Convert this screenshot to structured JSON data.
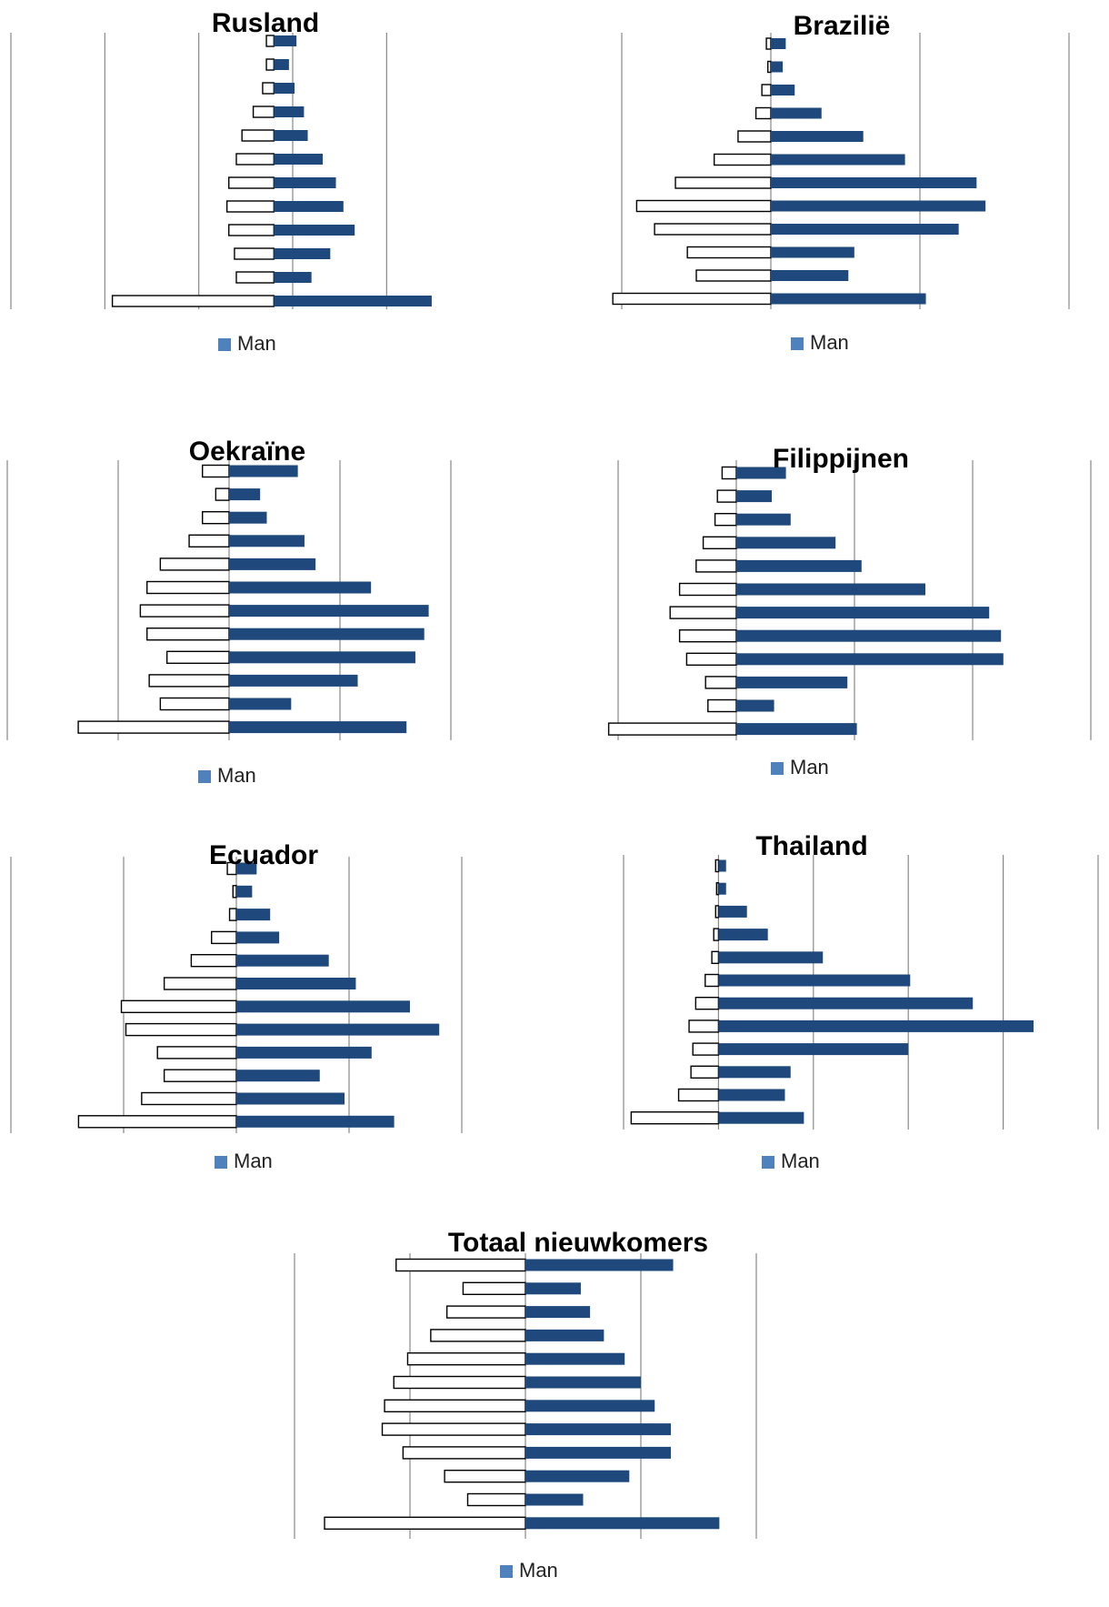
{
  "colors": {
    "man_fill": "#1F497D",
    "vrouw_fill": "#FFFFFF",
    "vrouw_stroke": "#000000",
    "legend_man": "#4F81BD",
    "gridline": "#888888"
  },
  "legend": {
    "man_label": "Man"
  },
  "chart_data": [
    {
      "type": "bar",
      "title": "Rusland",
      "orientation": "horizontal-pyramid",
      "xlim": [
        -7,
        5
      ],
      "grid": true,
      "legend_position": "bottom",
      "series": [
        {
          "values": [
            0.6,
            0.4,
            0.55,
            0.8,
            0.9,
            1.3,
            1.65,
            1.85,
            2.15,
            1.5,
            1.0,
            4.2
          ]
        },
        {
          "values": [
            -0.2,
            -0.2,
            -0.3,
            -0.55,
            -0.85,
            -1.0,
            -1.2,
            -1.25,
            -1.2,
            -1.05,
            -1.0,
            -4.3
          ]
        }
      ]
    },
    {
      "type": "bar",
      "title": "Brazilië",
      "orientation": "horizontal-pyramid",
      "xlim": [
        -5,
        10
      ],
      "grid": true,
      "legend_position": "bottom",
      "series": [
        {
          "values": [
            0.5,
            0.4,
            0.8,
            1.7,
            3.1,
            4.5,
            6.9,
            7.2,
            6.3,
            2.8,
            2.6,
            5.2
          ]
        },
        {
          "values": [
            -0.15,
            -0.1,
            -0.3,
            -0.5,
            -1.1,
            -1.9,
            -3.2,
            -4.5,
            -3.9,
            -2.8,
            -2.5,
            -5.3
          ]
        }
      ]
    },
    {
      "type": "bar",
      "title": "Oekraïne",
      "orientation": "horizontal-pyramid",
      "xlim": [
        -10,
        10
      ],
      "grid": true,
      "legend_position": "bottom",
      "series": [
        {
          "values": [
            3.1,
            1.4,
            1.7,
            3.4,
            3.9,
            6.4,
            9.0,
            8.8,
            8.4,
            5.8,
            2.8,
            8.0
          ]
        },
        {
          "values": [
            -1.2,
            -0.6,
            -1.2,
            -1.8,
            -3.1,
            -3.7,
            -4.0,
            -3.7,
            -2.8,
            -3.6,
            -3.1,
            -6.8
          ]
        }
      ]
    },
    {
      "type": "bar",
      "title": "Filippijnen",
      "orientation": "horizontal-pyramid",
      "xlim": [
        -5,
        15
      ],
      "grid": true,
      "legend_position": "bottom",
      "series": [
        {
          "values": [
            2.1,
            1.5,
            2.3,
            4.2,
            5.3,
            8.0,
            10.7,
            11.2,
            11.3,
            4.7,
            1.6,
            5.1
          ]
        },
        {
          "values": [
            -0.6,
            -0.8,
            -0.9,
            -1.4,
            -1.7,
            -2.4,
            -2.8,
            -2.4,
            -2.1,
            -1.3,
            -1.2,
            -5.4
          ]
        }
      ]
    },
    {
      "type": "bar",
      "title": "Ecuador",
      "orientation": "horizontal-pyramid",
      "xlim": [
        -10,
        10
      ],
      "grid": true,
      "legend_position": "bottom",
      "series": [
        {
          "values": [
            0.9,
            0.7,
            1.5,
            1.9,
            4.1,
            5.3,
            7.7,
            9.0,
            6.0,
            3.7,
            4.8,
            7.0
          ]
        },
        {
          "values": [
            -0.4,
            -0.15,
            -0.3,
            -1.1,
            -2.0,
            -3.2,
            -5.1,
            -4.9,
            -3.5,
            -3.2,
            -4.2,
            -7.0
          ]
        }
      ]
    },
    {
      "type": "bar",
      "title": "Thailand",
      "orientation": "horizontal-pyramid",
      "xlim": [
        -5,
        20
      ],
      "grid": true,
      "legend_position": "bottom",
      "series": [
        {
          "values": [
            0.4,
            0.4,
            1.5,
            2.6,
            5.5,
            10.1,
            13.4,
            16.6,
            10.0,
            3.8,
            3.5,
            4.5
          ]
        },
        {
          "values": [
            -0.15,
            -0.1,
            -0.15,
            -0.25,
            -0.35,
            -0.7,
            -1.2,
            -1.55,
            -1.35,
            -1.45,
            -2.1,
            -4.6
          ]
        }
      ]
    },
    {
      "type": "bar",
      "title": "Totaal nieuwkomers",
      "orientation": "horizontal-pyramid",
      "xlim": [
        -10,
        10
      ],
      "grid": true,
      "legend_position": "bottom",
      "series": [
        {
          "values": [
            6.4,
            2.4,
            2.8,
            3.4,
            4.3,
            5.0,
            5.6,
            6.3,
            6.3,
            4.5,
            2.5,
            8.4
          ]
        },
        {
          "values": [
            -5.6,
            -2.7,
            -3.4,
            -4.1,
            -5.1,
            -5.7,
            -6.1,
            -6.2,
            -5.3,
            -3.5,
            -2.5,
            -8.7
          ]
        }
      ]
    }
  ]
}
